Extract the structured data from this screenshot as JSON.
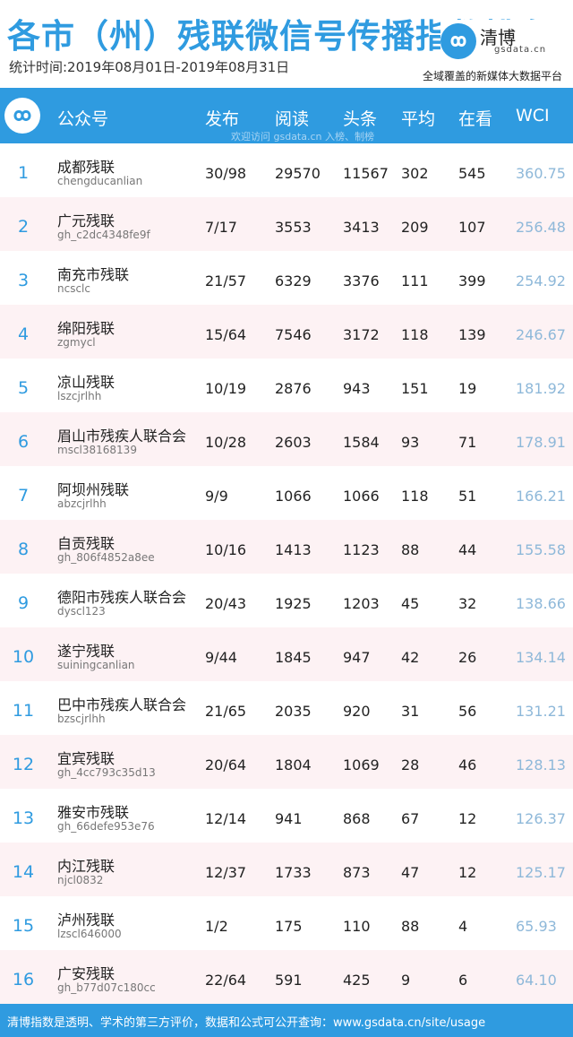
{
  "title": "各市（州）残联微信号传播指数排名",
  "period": "统计时间:2019年08月01日-2019年08月31日",
  "brand": {
    "name": "清博",
    "domain": "gsdata.cn",
    "slogan": "全域覆盖的新媒体大数据平台"
  },
  "columns": [
    "公众号",
    "发布",
    "阅读",
    "头条",
    "平均",
    "在看",
    "WCI"
  ],
  "watermark": "欢迎访问 gsdata.cn 入榜、制榜",
  "rows": [
    {
      "rank": "1",
      "name": "成都残联",
      "account": "chengducanlian",
      "publish": "30/98",
      "read": "29570",
      "headline": "11567",
      "avg": "302",
      "looking": "545",
      "wci": "360.75"
    },
    {
      "rank": "2",
      "name": "广元残联",
      "account": "gh_c2dc4348fe9f",
      "publish": "7/17",
      "read": "3553",
      "headline": "3413",
      "avg": "209",
      "looking": "107",
      "wci": "256.48"
    },
    {
      "rank": "3",
      "name": "南充市残联",
      "account": "ncsclc",
      "publish": "21/57",
      "read": "6329",
      "headline": "3376",
      "avg": "111",
      "looking": "399",
      "wci": "254.92"
    },
    {
      "rank": "4",
      "name": "绵阳残联",
      "account": "zgmycl",
      "publish": "15/64",
      "read": "7546",
      "headline": "3172",
      "avg": "118",
      "looking": "139",
      "wci": "246.67"
    },
    {
      "rank": "5",
      "name": "凉山残联",
      "account": "lszcjrlhh",
      "publish": "10/19",
      "read": "2876",
      "headline": "943",
      "avg": "151",
      "looking": "19",
      "wci": "181.92"
    },
    {
      "rank": "6",
      "name": "眉山市残疾人联合会",
      "account": "mscl38168139",
      "publish": "10/28",
      "read": "2603",
      "headline": "1584",
      "avg": "93",
      "looking": "71",
      "wci": "178.91"
    },
    {
      "rank": "7",
      "name": "阿坝州残联",
      "account": "abzcjrlhh",
      "publish": "9/9",
      "read": "1066",
      "headline": "1066",
      "avg": "118",
      "looking": "51",
      "wci": "166.21"
    },
    {
      "rank": "8",
      "name": "自贡残联",
      "account": "gh_806f4852a8ee",
      "publish": "10/16",
      "read": "1413",
      "headline": "1123",
      "avg": "88",
      "looking": "44",
      "wci": "155.58"
    },
    {
      "rank": "9",
      "name": "德阳市残疾人联合会",
      "account": "dyscl123",
      "publish": "20/43",
      "read": "1925",
      "headline": "1203",
      "avg": "45",
      "looking": "32",
      "wci": "138.66"
    },
    {
      "rank": "10",
      "name": "遂宁残联",
      "account": "suiningcanlian",
      "publish": "9/44",
      "read": "1845",
      "headline": "947",
      "avg": "42",
      "looking": "26",
      "wci": "134.14"
    },
    {
      "rank": "11",
      "name": "巴中市残疾人联合会",
      "account": "bzscjrlhh",
      "publish": "21/65",
      "read": "2035",
      "headline": "920",
      "avg": "31",
      "looking": "56",
      "wci": "131.21"
    },
    {
      "rank": "12",
      "name": "宜宾残联",
      "account": "gh_4cc793c35d13",
      "publish": "20/64",
      "read": "1804",
      "headline": "1069",
      "avg": "28",
      "looking": "46",
      "wci": "128.13"
    },
    {
      "rank": "13",
      "name": "雅安市残联",
      "account": "gh_66defe953e76",
      "publish": "12/14",
      "read": "941",
      "headline": "868",
      "avg": "67",
      "looking": "12",
      "wci": "126.37"
    },
    {
      "rank": "14",
      "name": "内江残联",
      "account": "njcl0832",
      "publish": "12/37",
      "read": "1733",
      "headline": "873",
      "avg": "47",
      "looking": "12",
      "wci": "125.17"
    },
    {
      "rank": "15",
      "name": "泸州残联",
      "account": "lzscl646000",
      "publish": "1/2",
      "read": "175",
      "headline": "110",
      "avg": "88",
      "looking": "4",
      "wci": "65.93"
    },
    {
      "rank": "16",
      "name": "广安残联",
      "account": "gh_b77d07c180cc",
      "publish": "22/64",
      "read": "591",
      "headline": "425",
      "avg": "9",
      "looking": "6",
      "wci": "64.10"
    }
  ],
  "footer": "清博指数是透明、学术的第三方评价，数据和公式可公开查询：www.gsdata.cn/site/usage",
  "colors": {
    "accent": "#2f9be0",
    "row_alt": "#fdf2f4",
    "wci": "#8eb8d9"
  }
}
